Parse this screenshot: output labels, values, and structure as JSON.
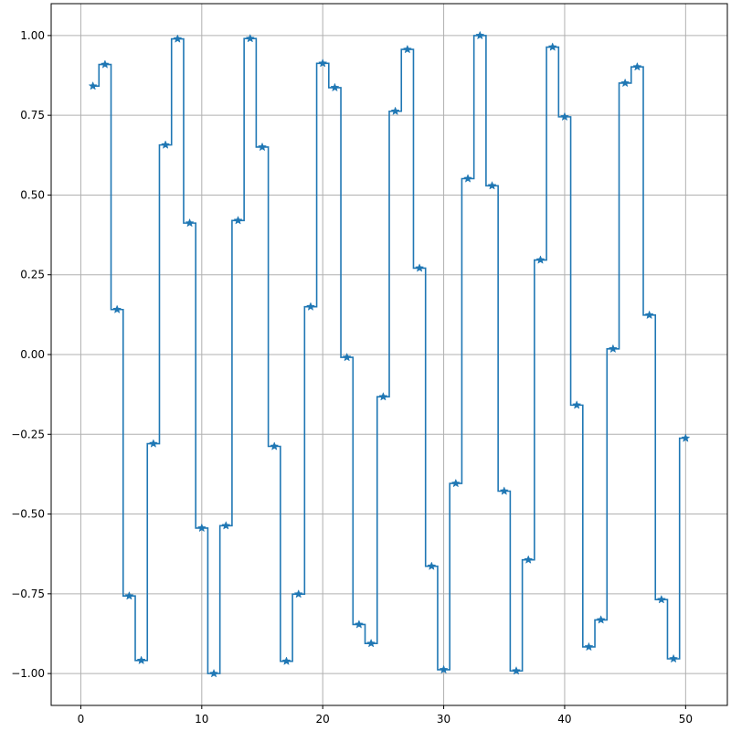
{
  "chart_data": {
    "type": "line",
    "style": "step-mid",
    "marker": "star",
    "color": "#1f77b4",
    "grid": true,
    "title": "",
    "xlabel": "",
    "ylabel": "",
    "xlim": [
      -2.45,
      53.45
    ],
    "ylim": [
      -1.0999,
      1.0999
    ],
    "x_ticks": [
      0,
      10,
      20,
      30,
      40,
      50
    ],
    "x_tick_labels": [
      "0",
      "10",
      "20",
      "30",
      "40",
      "50"
    ],
    "y_ticks": [
      -1.0,
      -0.75,
      -0.5,
      -0.25,
      0.0,
      0.25,
      0.5,
      0.75,
      1.0
    ],
    "y_tick_labels": [
      "−1.00",
      "−0.75",
      "−0.50",
      "−0.25",
      "0.00",
      "0.25",
      "0.50",
      "0.75",
      "1.00"
    ],
    "series": [
      {
        "x": [
          1,
          2,
          3,
          4,
          5,
          6,
          7,
          8,
          9,
          10,
          11,
          12,
          13,
          14,
          15,
          16,
          17,
          18,
          19,
          20,
          21,
          22,
          23,
          24,
          25,
          26,
          27,
          28,
          29,
          30,
          31,
          32,
          33,
          34,
          35,
          36,
          37,
          38,
          39,
          40,
          41,
          42,
          43,
          44,
          45,
          46,
          47,
          48,
          49,
          50
        ],
        "y": [
          0.8415,
          0.9093,
          0.1411,
          -0.7568,
          -0.9589,
          -0.2794,
          0.657,
          0.9894,
          0.4121,
          -0.544,
          -1.0,
          -0.5366,
          0.4202,
          0.9906,
          0.6503,
          -0.2879,
          -0.9614,
          -0.751,
          0.1499,
          0.9129,
          0.8367,
          -0.0089,
          -0.8462,
          -0.9056,
          -0.1324,
          0.7626,
          0.9564,
          0.2709,
          -0.6636,
          -0.988,
          -0.404,
          0.5514,
          0.9999,
          0.5291,
          -0.4282,
          -0.9918,
          -0.6435,
          0.2964,
          0.9638,
          0.7451,
          -0.1586,
          -0.9165,
          -0.8318,
          0.0177,
          0.8509,
          0.9018,
          0.1236,
          -0.7683,
          -0.9538,
          -0.2624
        ]
      }
    ]
  }
}
